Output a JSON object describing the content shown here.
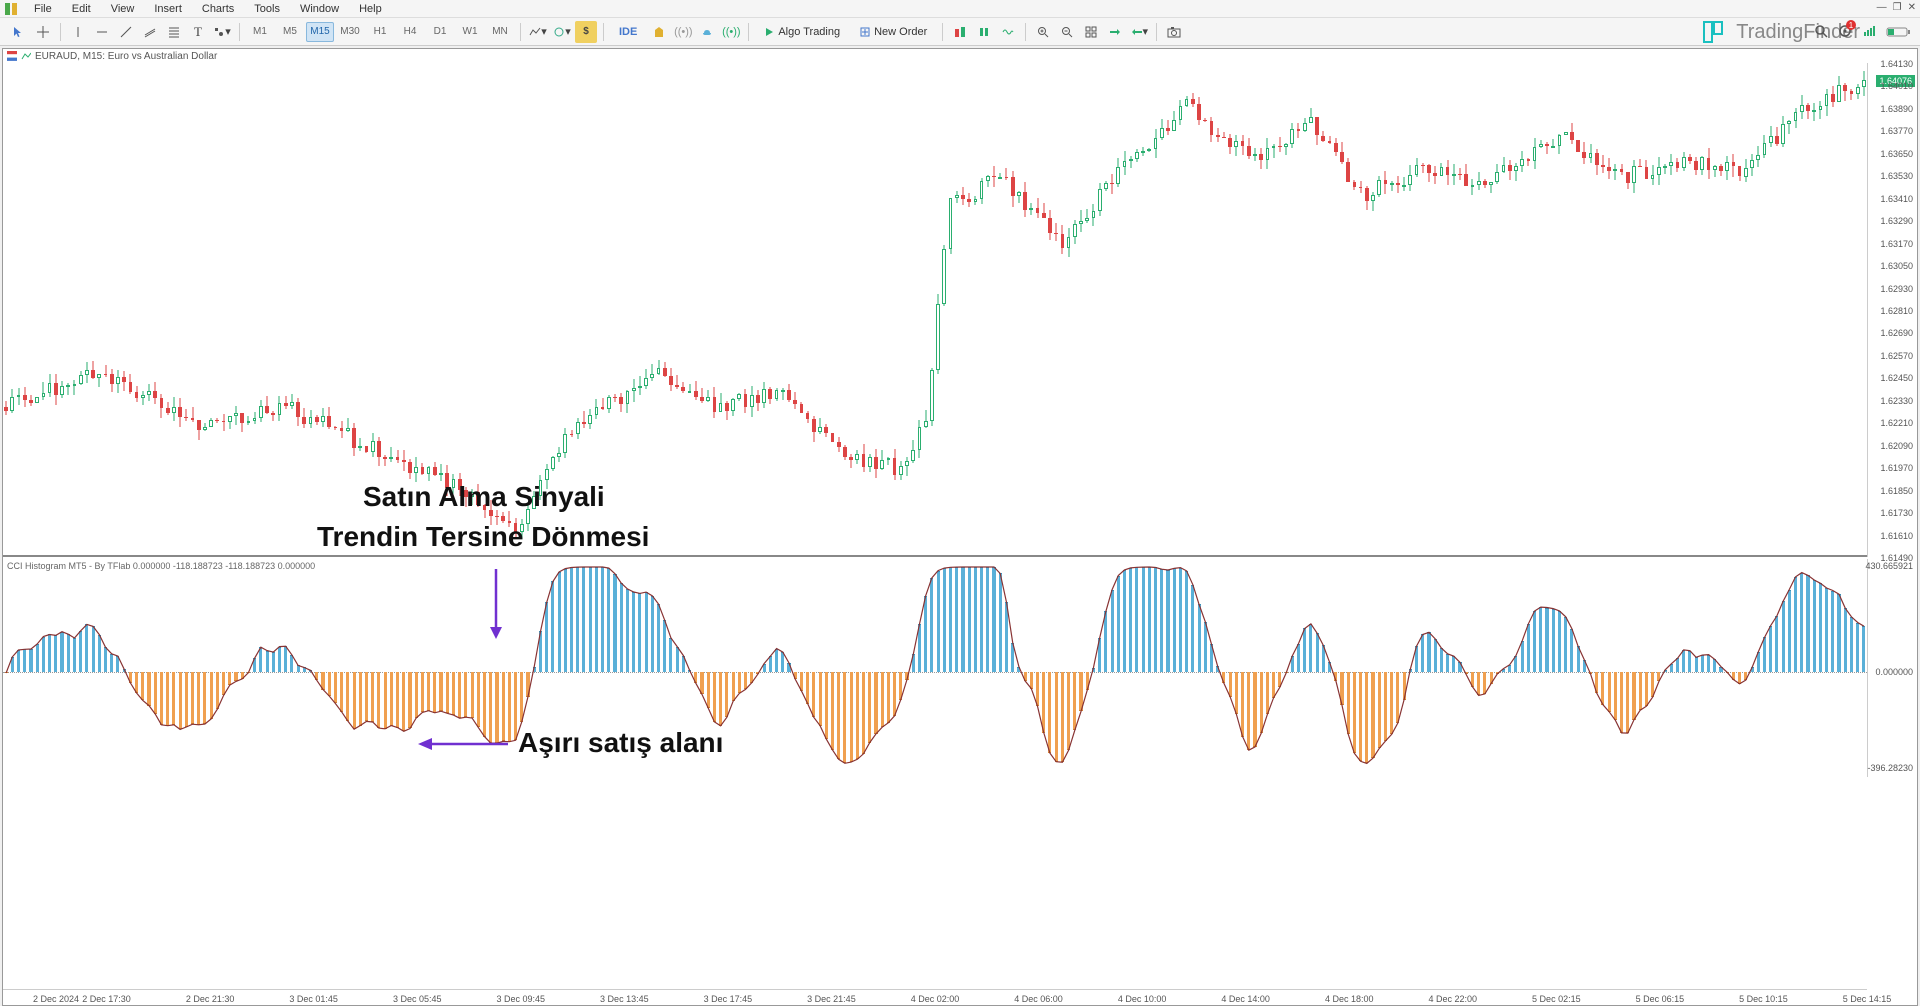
{
  "menu": {
    "items": [
      "File",
      "Edit",
      "View",
      "Insert",
      "Charts",
      "Tools",
      "Window",
      "Help"
    ]
  },
  "window_controls": {
    "min": "—",
    "max": "❐",
    "close": "✕"
  },
  "toolbar": {
    "timeframes": [
      "M1",
      "M5",
      "M15",
      "M30",
      "H1",
      "H4",
      "D1",
      "W1",
      "MN"
    ],
    "active_tf": "M15",
    "ide": "IDE",
    "algo": "Algo Trading",
    "new_order": "New Order"
  },
  "brand": {
    "name": "TradingFinder"
  },
  "chart": {
    "title": "EURAUD, M15:  Euro vs Australian Dollar",
    "price_ticks": [
      "1.64130",
      "1.64010",
      "1.63890",
      "1.63770",
      "1.63650",
      "1.63530",
      "1.63410",
      "1.63290",
      "1.63170",
      "1.63050",
      "1.62930",
      "1.62810",
      "1.62690",
      "1.62570",
      "1.62450",
      "1.62330",
      "1.62210",
      "1.62090",
      "1.61970",
      "1.61850",
      "1.61730",
      "1.61610",
      "1.61490"
    ],
    "current_price": "1.64076",
    "price_min": 1.614,
    "price_max": 1.642,
    "candles_seed": 1
  },
  "indicator": {
    "title": "CCI Histogram MT5 - By TFlab 0.000000  -118.188723 -118.188723 0.000000",
    "max_label": "430.665921",
    "zero_label": "0.000000",
    "min_label": "-396.28230",
    "range": 430
  },
  "time_axis": {
    "ticks": [
      "2 Dec 2024",
      "2 Dec 17:30",
      "2 Dec 21:30",
      "3 Dec 01:45",
      "3 Dec 05:45",
      "3 Dec 09:45",
      "3 Dec 13:45",
      "3 Dec 17:45",
      "3 Dec 21:45",
      "4 Dec 02:00",
      "4 Dec 06:00",
      "4 Dec 10:00",
      "4 Dec 14:00",
      "4 Dec 18:00",
      "4 Dec 22:00",
      "5 Dec 02:15",
      "5 Dec 06:15",
      "5 Dec 10:15",
      "5 Dec 14:15"
    ]
  },
  "annotations": {
    "signal_l1": "Satın Alma Sinyali",
    "signal_l2": "Trendin Tersine Dönmesi",
    "oversold": "Aşırı satış alanı"
  },
  "colors": {
    "up": "#2aae6f",
    "down": "#dd4444",
    "hist_pos": "#5ab0d8",
    "hist_neg": "#f0a050",
    "hist_line": "#883333",
    "arrow": "#7030d0",
    "bg": "#ffffff"
  }
}
